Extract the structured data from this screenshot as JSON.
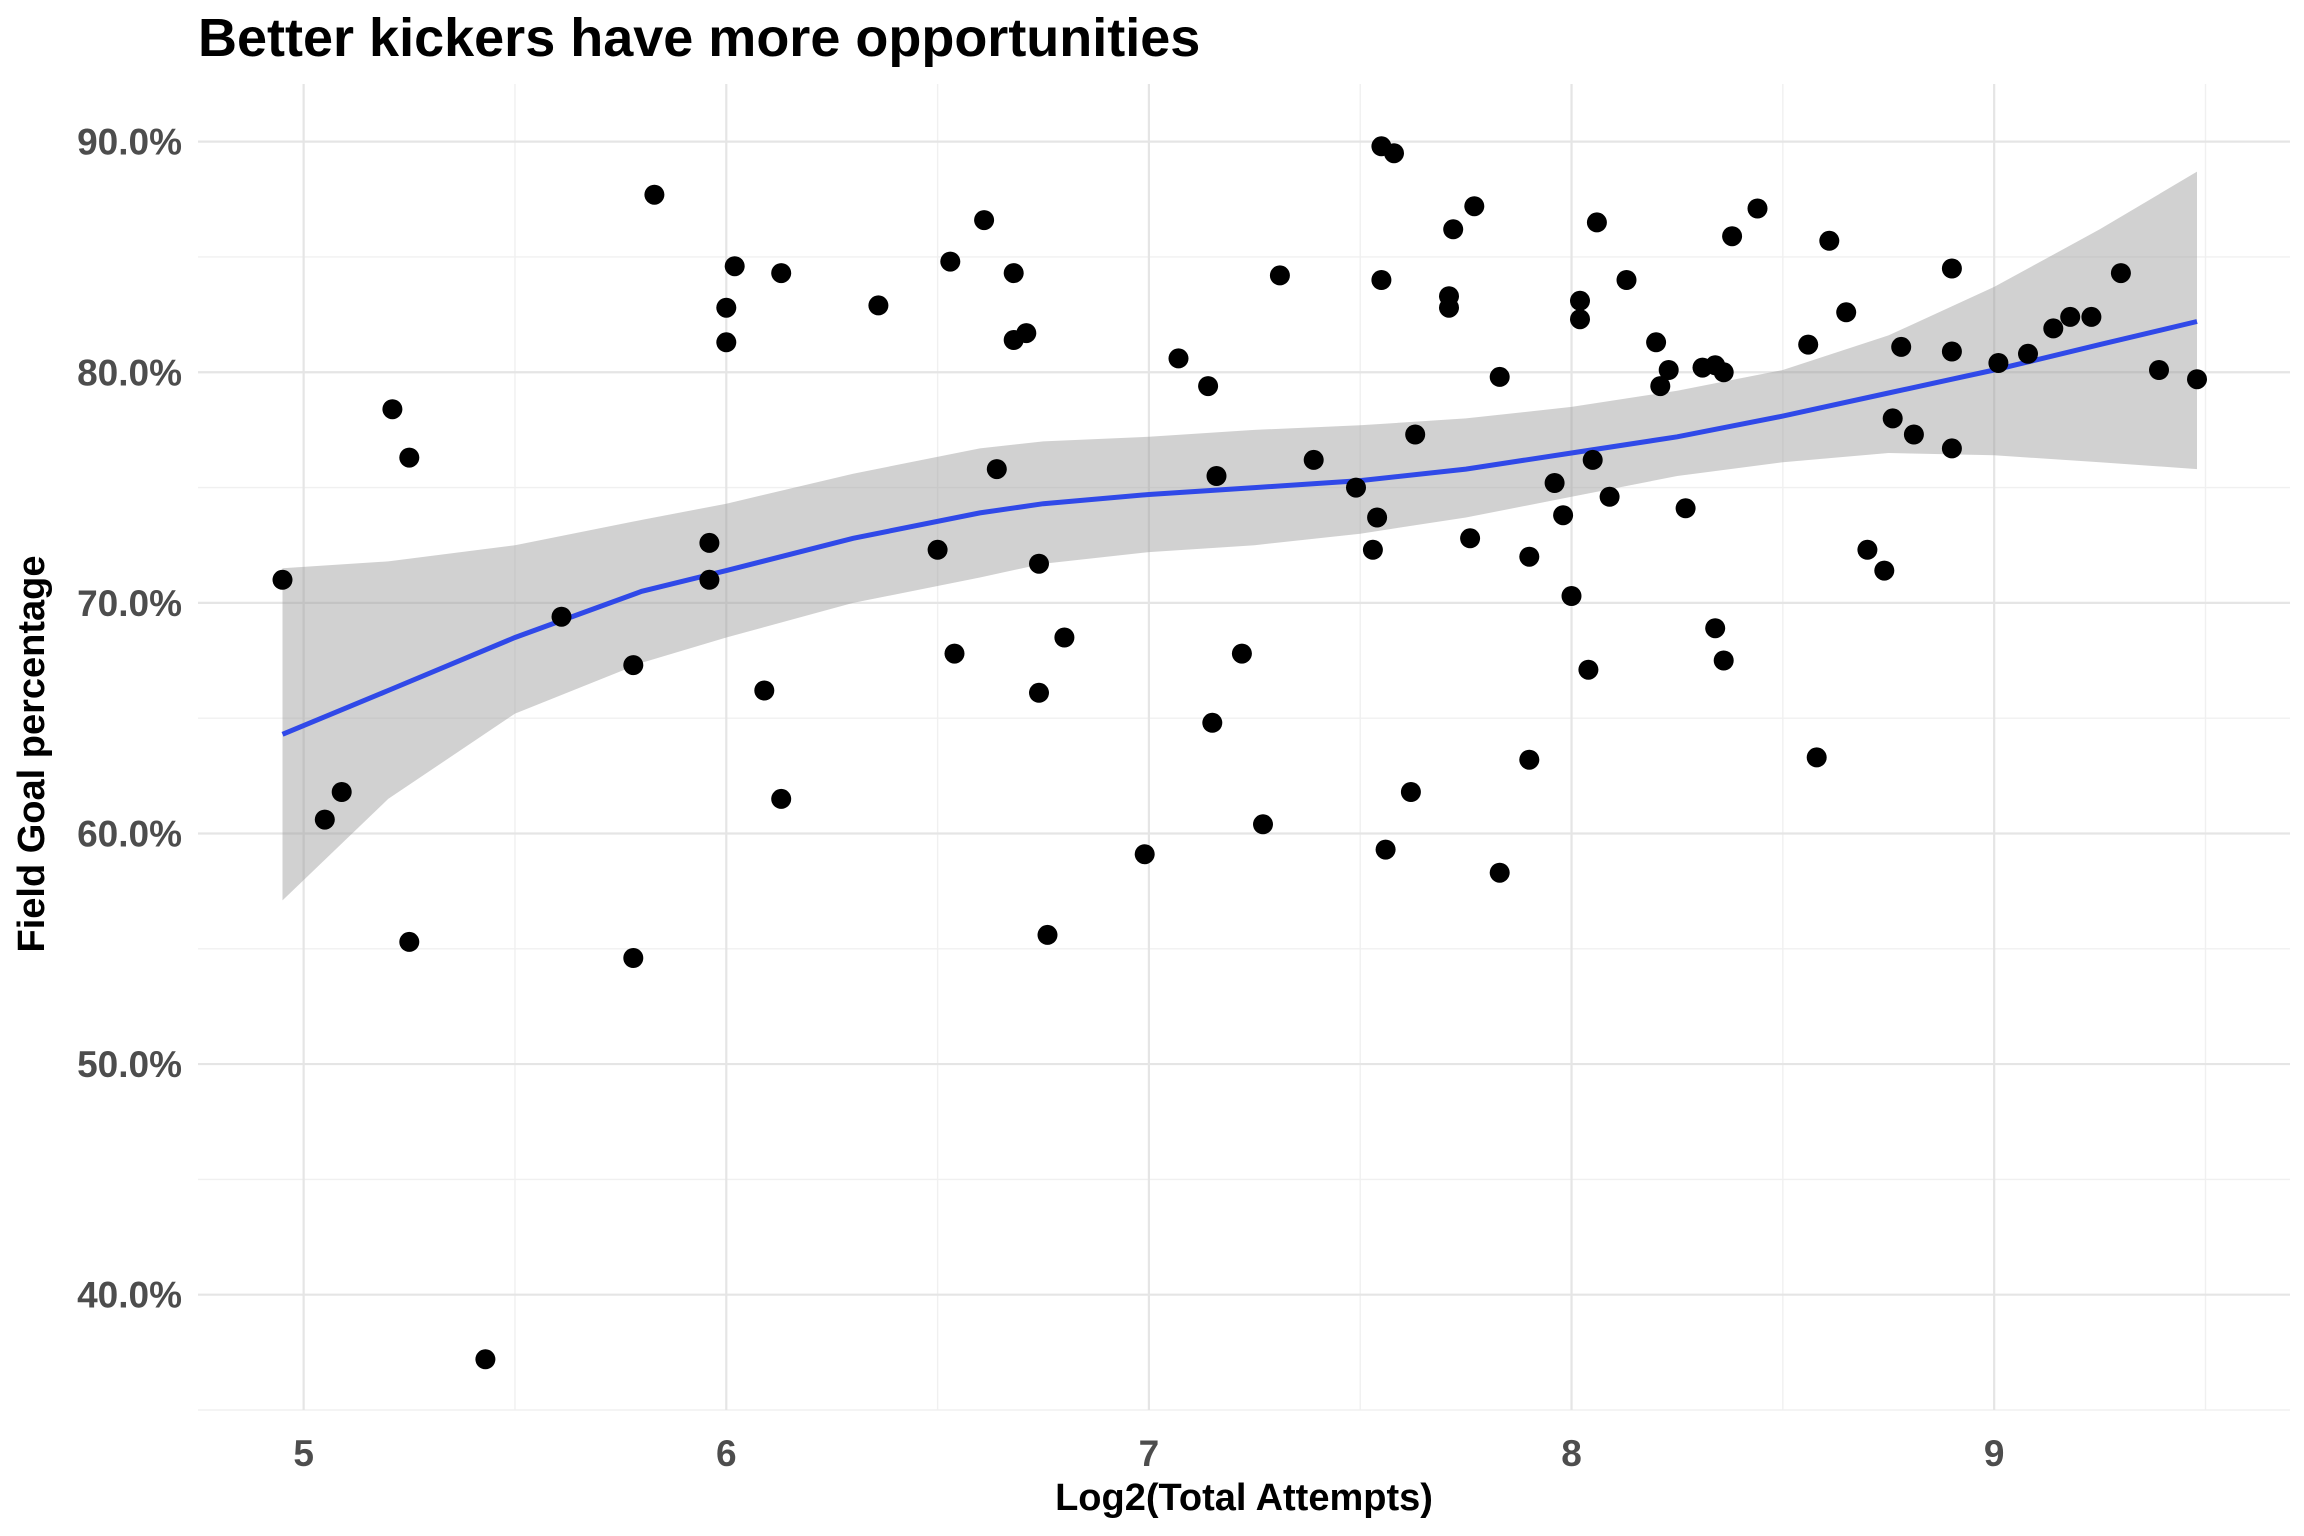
{
  "chart_data": {
    "type": "scatter",
    "title": "Better kickers have more opportunities",
    "xlabel": "Log2(Total Attempts)",
    "ylabel": "Field Goal percentage",
    "xlim": [
      4.75,
      9.7
    ],
    "ylim": [
      0.35,
      0.925
    ],
    "x_ticks": [
      5,
      6,
      7,
      8,
      9
    ],
    "x_tick_labels": [
      "5",
      "6",
      "7",
      "8",
      "9"
    ],
    "y_ticks": [
      0.4,
      0.5,
      0.6,
      0.7,
      0.8,
      0.9
    ],
    "y_tick_labels": [
      "40.0%",
      "50.0%",
      "60.0%",
      "70.0%",
      "80.0%",
      "90.0%"
    ],
    "grid": true,
    "legend": "none",
    "colors": {
      "points": "#000000",
      "trend": "#3049e8",
      "band": "#999999"
    },
    "points": [
      [
        4.95,
        0.71
      ],
      [
        5.05,
        0.606
      ],
      [
        5.09,
        0.618
      ],
      [
        5.21,
        0.784
      ],
      [
        5.25,
        0.763
      ],
      [
        5.25,
        0.553
      ],
      [
        5.43,
        0.372
      ],
      [
        5.61,
        0.694
      ],
      [
        5.78,
        0.673
      ],
      [
        5.78,
        0.546
      ],
      [
        5.83,
        0.877
      ],
      [
        5.96,
        0.726
      ],
      [
        5.96,
        0.71
      ],
      [
        6.0,
        0.828
      ],
      [
        6.0,
        0.813
      ],
      [
        6.02,
        0.846
      ],
      [
        6.09,
        0.662
      ],
      [
        6.13,
        0.843
      ],
      [
        6.13,
        0.615
      ],
      [
        6.36,
        0.829
      ],
      [
        6.5,
        0.723
      ],
      [
        6.53,
        0.848
      ],
      [
        6.54,
        0.678
      ],
      [
        6.61,
        0.866
      ],
      [
        6.64,
        0.758
      ],
      [
        6.68,
        0.843
      ],
      [
        6.68,
        0.814
      ],
      [
        6.71,
        0.817
      ],
      [
        6.74,
        0.717
      ],
      [
        6.74,
        0.661
      ],
      [
        6.76,
        0.556
      ],
      [
        6.8,
        0.685
      ],
      [
        6.99,
        0.591
      ],
      [
        7.07,
        0.806
      ],
      [
        7.14,
        0.794
      ],
      [
        7.15,
        0.648
      ],
      [
        7.16,
        0.755
      ],
      [
        7.22,
        0.678
      ],
      [
        7.27,
        0.604
      ],
      [
        7.31,
        0.842
      ],
      [
        7.39,
        0.762
      ],
      [
        7.49,
        0.75
      ],
      [
        7.53,
        0.723
      ],
      [
        7.54,
        0.737
      ],
      [
        7.55,
        0.898
      ],
      [
        7.55,
        0.84
      ],
      [
        7.56,
        0.593
      ],
      [
        7.58,
        0.895
      ],
      [
        7.62,
        0.618
      ],
      [
        7.63,
        0.773
      ],
      [
        7.71,
        0.833
      ],
      [
        7.71,
        0.828
      ],
      [
        7.72,
        0.862
      ],
      [
        7.76,
        0.728
      ],
      [
        7.77,
        0.872
      ],
      [
        7.83,
        0.798
      ],
      [
        7.83,
        0.583
      ],
      [
        7.9,
        0.72
      ],
      [
        7.9,
        0.632
      ],
      [
        7.96,
        0.752
      ],
      [
        7.98,
        0.738
      ],
      [
        8.0,
        0.703
      ],
      [
        8.02,
        0.823
      ],
      [
        8.02,
        0.831
      ],
      [
        8.04,
        0.671
      ],
      [
        8.05,
        0.762
      ],
      [
        8.06,
        0.865
      ],
      [
        8.09,
        0.746
      ],
      [
        8.13,
        0.84
      ],
      [
        8.2,
        0.813
      ],
      [
        8.21,
        0.794
      ],
      [
        8.23,
        0.801
      ],
      [
        8.27,
        0.741
      ],
      [
        8.31,
        0.802
      ],
      [
        8.34,
        0.803
      ],
      [
        8.34,
        0.689
      ],
      [
        8.36,
        0.675
      ],
      [
        8.36,
        0.8
      ],
      [
        8.38,
        0.859
      ],
      [
        8.44,
        0.871
      ],
      [
        8.56,
        0.812
      ],
      [
        8.58,
        0.633
      ],
      [
        8.61,
        0.857
      ],
      [
        8.65,
        0.826
      ],
      [
        8.7,
        0.723
      ],
      [
        8.74,
        0.714
      ],
      [
        8.76,
        0.78
      ],
      [
        8.78,
        0.811
      ],
      [
        8.81,
        0.773
      ],
      [
        8.9,
        0.845
      ],
      [
        8.9,
        0.809
      ],
      [
        8.9,
        0.767
      ],
      [
        9.01,
        0.804
      ],
      [
        9.08,
        0.808
      ],
      [
        9.14,
        0.819
      ],
      [
        9.18,
        0.824
      ],
      [
        9.23,
        0.824
      ],
      [
        9.3,
        0.843
      ],
      [
        9.39,
        0.801
      ],
      [
        9.48,
        0.797
      ]
    ],
    "trend": {
      "x": [
        4.95,
        5.2,
        5.5,
        5.8,
        6.0,
        6.3,
        6.6,
        6.75,
        7.0,
        7.25,
        7.5,
        7.75,
        8.0,
        8.25,
        8.5,
        8.75,
        9.0,
        9.25,
        9.48
      ],
      "y": [
        0.643,
        0.662,
        0.685,
        0.705,
        0.714,
        0.728,
        0.739,
        0.743,
        0.747,
        0.75,
        0.753,
        0.758,
        0.765,
        0.772,
        0.781,
        0.791,
        0.801,
        0.812,
        0.822
      ],
      "lower": [
        0.571,
        0.615,
        0.652,
        0.674,
        0.685,
        0.7,
        0.711,
        0.717,
        0.722,
        0.725,
        0.73,
        0.737,
        0.746,
        0.755,
        0.761,
        0.765,
        0.764,
        0.761,
        0.758
      ],
      "upper": [
        0.715,
        0.718,
        0.725,
        0.736,
        0.743,
        0.756,
        0.767,
        0.77,
        0.772,
        0.775,
        0.777,
        0.78,
        0.785,
        0.792,
        0.801,
        0.816,
        0.837,
        0.862,
        0.887
      ]
    }
  }
}
